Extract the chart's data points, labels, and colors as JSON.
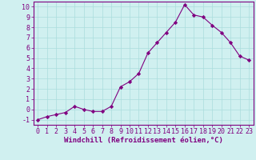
{
  "hours": [
    0,
    1,
    2,
    3,
    4,
    5,
    6,
    7,
    8,
    9,
    10,
    11,
    12,
    13,
    14,
    15,
    16,
    17,
    18,
    19,
    20,
    21,
    22,
    23
  ],
  "values": [
    -1,
    -0.7,
    -0.5,
    -0.3,
    0.3,
    0.0,
    -0.2,
    -0.2,
    0.3,
    2.2,
    2.7,
    3.5,
    5.5,
    6.5,
    7.5,
    8.5,
    10.2,
    9.2,
    9.0,
    8.2,
    7.5,
    6.5,
    5.2,
    4.8
  ],
  "line_color": "#800080",
  "marker": "D",
  "marker_size": 2.2,
  "bg_color": "#d0f0f0",
  "grid_color": "#aadddd",
  "xlabel": "Windchill (Refroidissement éolien,°C)",
  "xlim": [
    -0.5,
    23.5
  ],
  "ylim": [
    -1.5,
    10.5
  ],
  "yticks": [
    -1,
    0,
    1,
    2,
    3,
    4,
    5,
    6,
    7,
    8,
    9,
    10
  ],
  "xticks": [
    0,
    1,
    2,
    3,
    4,
    5,
    6,
    7,
    8,
    9,
    10,
    11,
    12,
    13,
    14,
    15,
    16,
    17,
    18,
    19,
    20,
    21,
    22,
    23
  ],
  "tick_fontsize": 6,
  "xlabel_fontsize": 6.5,
  "line_color_hex": "#800080"
}
